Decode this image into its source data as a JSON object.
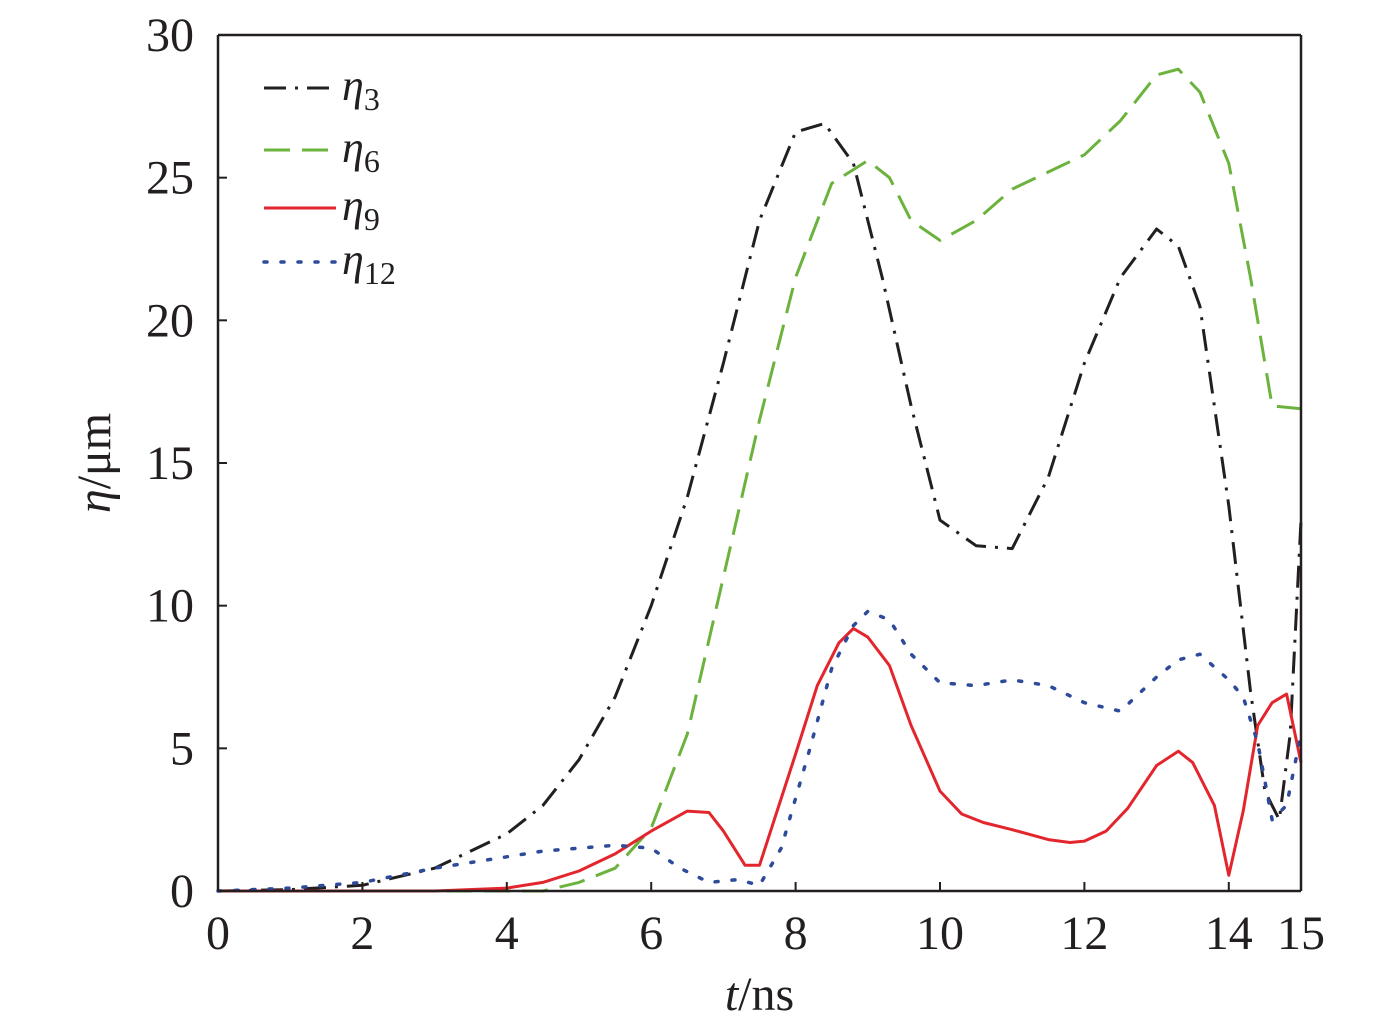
{
  "chart_data": {
    "type": "line",
    "title": "",
    "xlabel": {
      "var": "t",
      "unit": "/ns"
    },
    "ylabel": {
      "var": "η",
      "unit": "/μm"
    },
    "xlim": [
      0,
      15
    ],
    "ylim": [
      0,
      30
    ],
    "xticks": [
      0,
      2,
      4,
      6,
      8,
      10,
      12,
      14,
      15
    ],
    "yticks": [
      0,
      5,
      10,
      15,
      20,
      25,
      30
    ],
    "grid": false,
    "legend_position": "top-left",
    "series": [
      {
        "name": "η3",
        "base": "η",
        "sub": "3",
        "color": "#231f20",
        "dash": "22 9 3 9",
        "x": [
          0,
          1,
          2,
          3,
          4,
          4.5,
          5,
          5.5,
          6,
          6.5,
          7,
          7.5,
          8,
          8.4,
          8.8,
          9.2,
          9.6,
          10,
          10.5,
          11,
          11.5,
          12,
          12.5,
          13,
          13.3,
          13.6,
          14,
          14.3,
          14.5,
          14.7,
          14.85,
          15
        ],
        "y": [
          0,
          0.05,
          0.2,
          0.8,
          2,
          3,
          4.6,
          6.8,
          10,
          13.8,
          18.5,
          23.5,
          26.6,
          26.9,
          25.5,
          21.5,
          17,
          13,
          12.1,
          12,
          14.5,
          18.5,
          21.5,
          23.2,
          22.6,
          20.5,
          13.5,
          7,
          3.5,
          2.5,
          5.5,
          13
        ]
      },
      {
        "name": "η6",
        "base": "η",
        "sub": "6",
        "color": "#6cb33e",
        "dash": "26 12",
        "x": [
          0,
          4,
          4.5,
          5,
          5.5,
          6,
          6.5,
          7,
          7.5,
          8,
          8.5,
          9,
          9.3,
          9.6,
          10,
          10.5,
          11,
          11.5,
          12,
          12.5,
          13,
          13.3,
          13.6,
          14,
          14.3,
          14.6,
          15
        ],
        "y": [
          0,
          0,
          0,
          0.3,
          0.8,
          2.2,
          5.5,
          11,
          16.5,
          21.5,
          24.8,
          25.6,
          25,
          23.5,
          22.8,
          23.5,
          24.6,
          25.2,
          25.8,
          27,
          28.6,
          28.8,
          28,
          25.5,
          21.5,
          17,
          16.9
        ]
      },
      {
        "name": "η9",
        "base": "η",
        "sub": "9",
        "color": "#e3262d",
        "dash": "",
        "x": [
          0,
          3,
          4,
          4.5,
          5,
          5.5,
          6,
          6.5,
          6.8,
          7,
          7.3,
          7.5,
          8,
          8.3,
          8.6,
          8.8,
          9,
          9.3,
          9.6,
          10,
          10.3,
          10.6,
          11,
          11.5,
          11.8,
          12,
          12.3,
          12.6,
          13,
          13.3,
          13.5,
          13.8,
          14,
          14.2,
          14.4,
          14.6,
          14.8,
          15
        ],
        "y": [
          0,
          0,
          0.1,
          0.3,
          0.7,
          1.3,
          2.1,
          2.8,
          2.75,
          2.1,
          0.9,
          0.9,
          4.8,
          7.2,
          8.7,
          9.2,
          8.9,
          7.9,
          5.8,
          3.5,
          2.7,
          2.4,
          2.15,
          1.8,
          1.7,
          1.75,
          2.1,
          2.9,
          4.4,
          4.9,
          4.5,
          3.0,
          0.55,
          2.8,
          5.8,
          6.6,
          6.9,
          4.5
        ]
      },
      {
        "name": "η12",
        "base": "η",
        "sub": "12",
        "color": "#2e4b9b",
        "dash": "3 14",
        "x": [
          0,
          1,
          2,
          3,
          4,
          4.5,
          5,
          5.5,
          6,
          6.4,
          6.8,
          7.2,
          7.5,
          7.8,
          8.2,
          8.5,
          8.8,
          9,
          9.3,
          9.6,
          10,
          10.5,
          11,
          11.5,
          12,
          12.5,
          13,
          13.3,
          13.6,
          14,
          14.2,
          14.4,
          14.6,
          14.8,
          15
        ],
        "y": [
          0,
          0.1,
          0.3,
          0.8,
          1.2,
          1.4,
          1.5,
          1.6,
          1.5,
          0.8,
          0.3,
          0.4,
          0.2,
          1.5,
          5,
          7.8,
          9.3,
          9.8,
          9.5,
          8.3,
          7.3,
          7.2,
          7.4,
          7.2,
          6.6,
          6.3,
          7.5,
          8.1,
          8.3,
          7.4,
          6.8,
          5.2,
          2.5,
          3,
          5.5
        ]
      }
    ]
  }
}
